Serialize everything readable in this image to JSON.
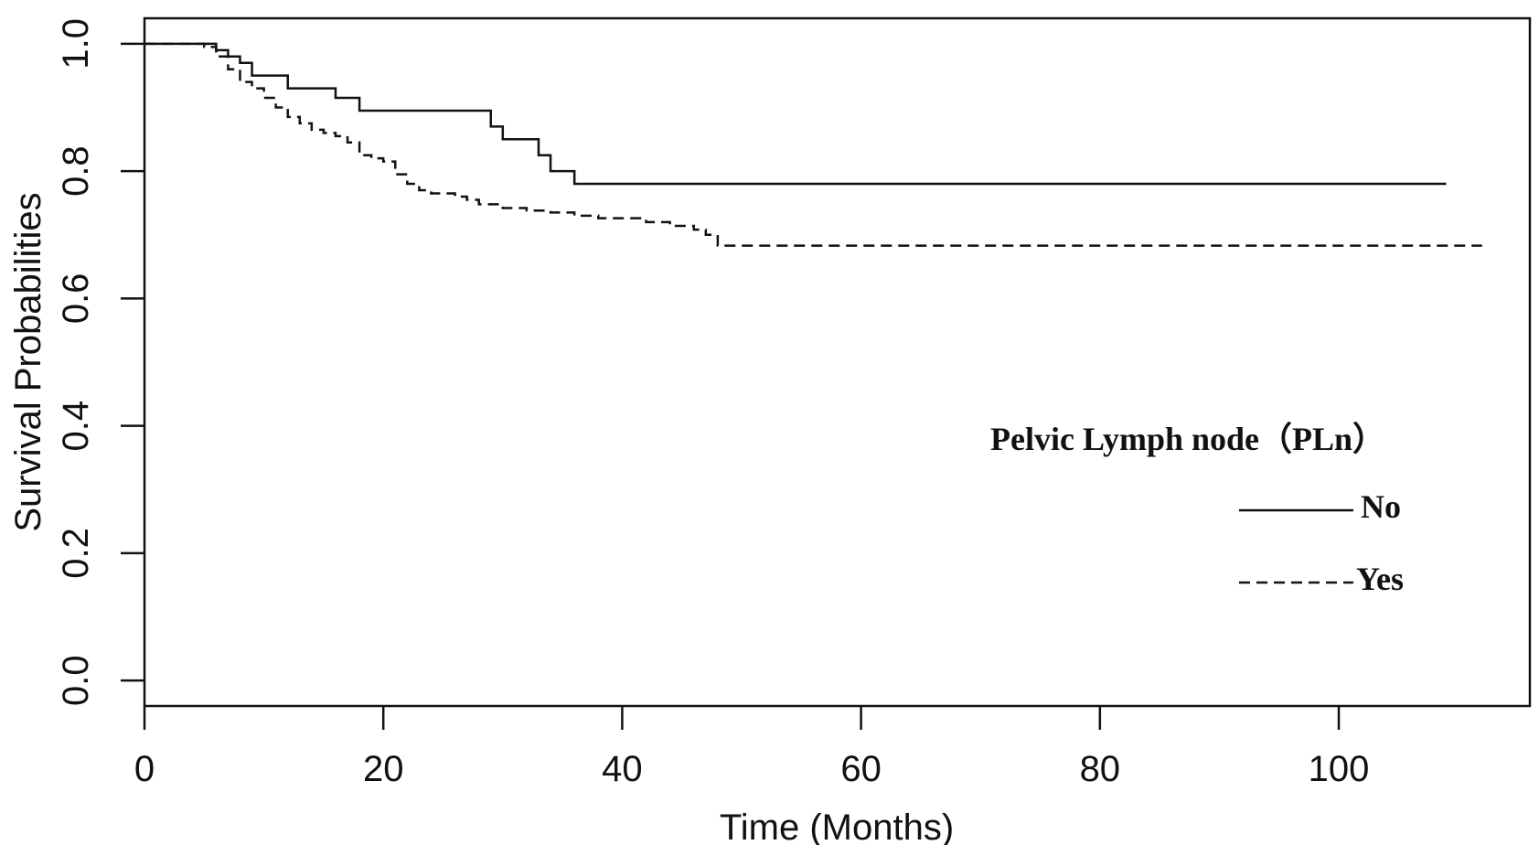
{
  "chart_data": {
    "type": "line",
    "xlabel": "Time (Months)",
    "ylabel": "Survival Probabilities",
    "xlim": [
      0,
      116
    ],
    "ylim": [
      -0.04,
      1.04
    ],
    "xticks": [
      "0",
      "20",
      "40",
      "60",
      "80",
      "100"
    ],
    "yticks": [
      "0.0",
      "0.2",
      "0.4",
      "0.6",
      "0.8",
      "1.0"
    ],
    "legend": {
      "title": "Pelvic Lymph node（PLn）",
      "position": "center-right"
    },
    "series": [
      {
        "name": "No",
        "style": "solid",
        "x": [
          0,
          6,
          7,
          8,
          9,
          12,
          16,
          18,
          29,
          30,
          31,
          33,
          34,
          36,
          109
        ],
        "y": [
          1.0,
          0.99,
          0.98,
          0.97,
          0.95,
          0.93,
          0.915,
          0.895,
          0.87,
          0.85,
          0.85,
          0.825,
          0.8,
          0.78,
          0.78
        ]
      },
      {
        "name": "Yes",
        "style": "dashed",
        "x": [
          0,
          5,
          6,
          7,
          8,
          9,
          10,
          11,
          12,
          13,
          14,
          15,
          16,
          17,
          18,
          19,
          20,
          21,
          22,
          23,
          24,
          25,
          26,
          27,
          28,
          30,
          32,
          34,
          36,
          38,
          42,
          44,
          46,
          47,
          48,
          112
        ],
        "y": [
          1.0,
          0.995,
          0.98,
          0.96,
          0.94,
          0.93,
          0.915,
          0.9,
          0.885,
          0.875,
          0.865,
          0.86,
          0.855,
          0.845,
          0.825,
          0.82,
          0.815,
          0.795,
          0.78,
          0.77,
          0.765,
          0.765,
          0.76,
          0.755,
          0.748,
          0.742,
          0.738,
          0.735,
          0.73,
          0.726,
          0.72,
          0.714,
          0.708,
          0.7,
          0.683,
          0.683
        ]
      }
    ]
  }
}
